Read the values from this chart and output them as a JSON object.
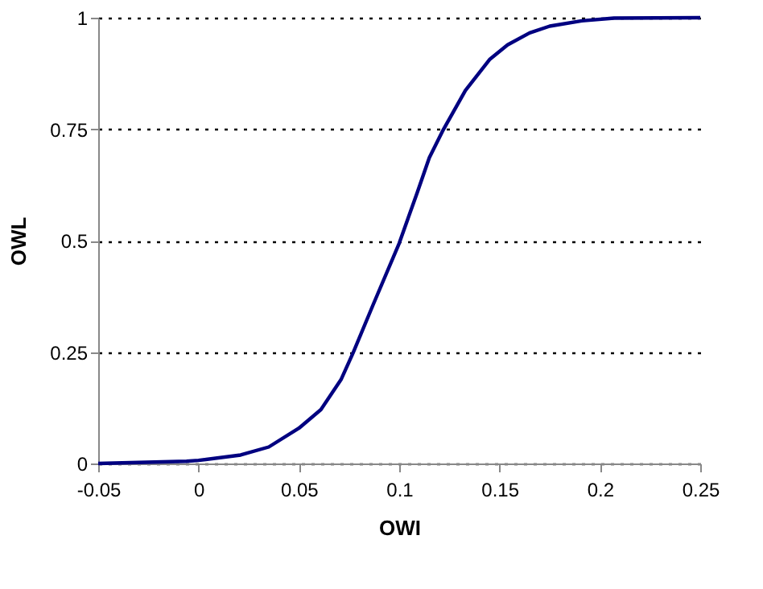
{
  "chart_data": {
    "type": "line",
    "xlabel": "OWI",
    "ylabel": "OWL",
    "x": [
      -0.05,
      -0.006,
      0,
      0.021,
      0.035,
      0.05,
      0.061,
      0.071,
      0.077,
      0.087,
      0.1,
      0.109,
      0.115,
      0.122,
      0.133,
      0.145,
      0.154,
      0.165,
      0.175,
      0.191,
      0.207,
      0.25
    ],
    "series": [
      {
        "color": "#000080",
        "values": [
          0,
          0.005,
          0.007,
          0.019,
          0.037,
          0.079,
          0.121,
          0.188,
          0.248,
          0.356,
          0.494,
          0.608,
          0.686,
          0.749,
          0.837,
          0.906,
          0.939,
          0.966,
          0.981,
          0.993,
          0.999,
          1
        ]
      }
    ],
    "xlim": [
      -0.05,
      0.25
    ],
    "xticks": [
      -0.05,
      0,
      0.05,
      0.1,
      0.15,
      0.2,
      0.25
    ],
    "ylim": [
      0,
      1
    ],
    "yticks": [
      0,
      0.25,
      0.5,
      0.75,
      1
    ],
    "grid": "y",
    "marker": "none",
    "line_style": "solid",
    "legend": false
  }
}
